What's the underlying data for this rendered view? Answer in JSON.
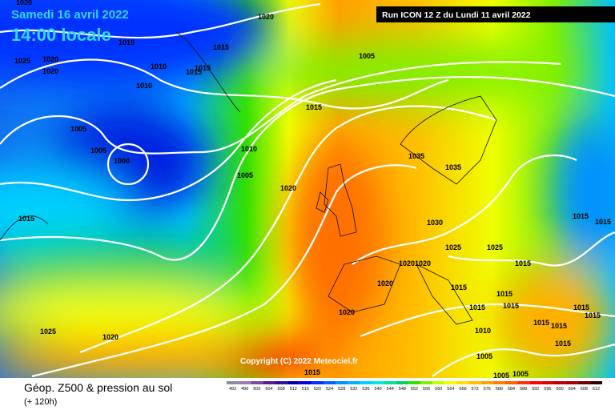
{
  "header": {
    "date": "Samedi 16 avril 2022",
    "time": "14:00 locale",
    "run": "Run ICON 12 Z du Lundi 11 avril 2022"
  },
  "isobar_labels": [
    "1020",
    "1020",
    "1010",
    "1025",
    "1020",
    "1020",
    "1015",
    "1010",
    "1015",
    "1015",
    "1005",
    "1010",
    "1015",
    "1005",
    "1005",
    "1000",
    "1010",
    "1005",
    "1020",
    "1035",
    "1035",
    "1015",
    "1030",
    "1015",
    "1015",
    "1025",
    "1025",
    "1020",
    "1020",
    "1015",
    "1020",
    "1015",
    "1015",
    "1015",
    "1015",
    "1020",
    "1015",
    "1015",
    "1015",
    "1015",
    "1025",
    "1010",
    "1020",
    "1015",
    "1005",
    "1005",
    "1005",
    "1015"
  ],
  "copyright": "Copyright (C) 2022 Meteociel.fr",
  "footer": {
    "title": "Géop. Z500 & pression au sol",
    "lead": "(+ 120h)"
  },
  "legend": {
    "labels": [
      492,
      496,
      500,
      504,
      508,
      512,
      516,
      520,
      524,
      528,
      532,
      536,
      540,
      544,
      548,
      552,
      556,
      560,
      564,
      568,
      572,
      576,
      580,
      584,
      588,
      592,
      596,
      600,
      604,
      608,
      612
    ],
    "colors": [
      "#8c8ca0",
      "#9a7cb4",
      "#7a4a9c",
      "#55208c",
      "#30109c",
      "#0000a0",
      "#0000e0",
      "#0030ff",
      "#0060ff",
      "#0090ff",
      "#00b0ff",
      "#00d0ff",
      "#00e8e0",
      "#00e0a0",
      "#00d060",
      "#30e000",
      "#80f000",
      "#c0ff00",
      "#f0ff00",
      "#ffe000",
      "#ffc000",
      "#ffa000",
      "#ff8000",
      "#ff6000",
      "#ff3000",
      "#ff0000",
      "#e00000",
      "#c00000",
      "#a00000",
      "#700000",
      "#300000"
    ]
  }
}
